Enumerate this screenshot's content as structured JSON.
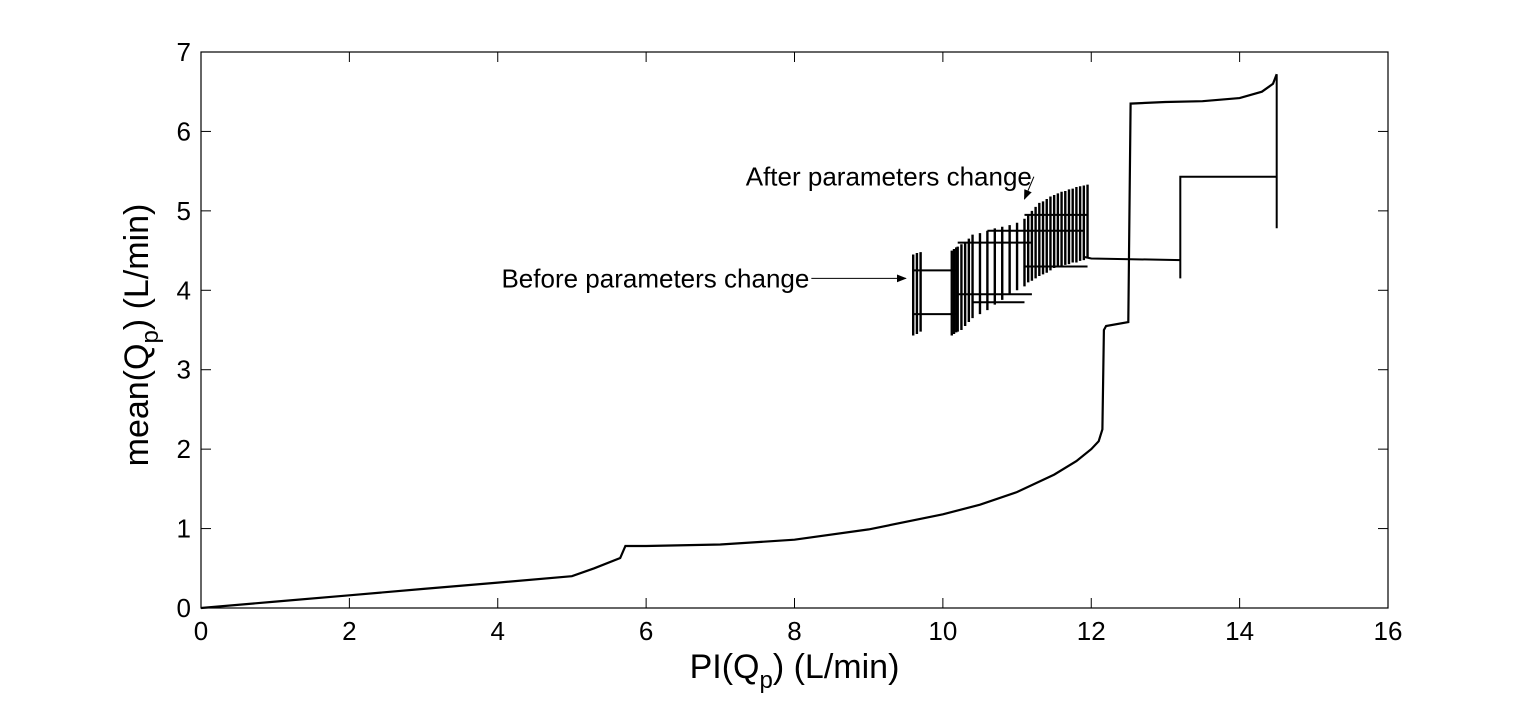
{
  "chart_data": {
    "type": "line",
    "title": "",
    "xlabel": {
      "main": "PI(Q",
      "sub": "p",
      "tail": ") (L/min)"
    },
    "ylabel": {
      "main": "mean(Q",
      "sub": "p",
      "tail": ") (L/min)"
    },
    "xlim": [
      0,
      16
    ],
    "ylim": [
      0,
      7
    ],
    "xticks": [
      "0",
      "2",
      "4",
      "6",
      "8",
      "10",
      "12",
      "14",
      "16"
    ],
    "yticks": [
      "0",
      "1",
      "2",
      "3",
      "4",
      "5",
      "6",
      "7"
    ],
    "grid": false,
    "colors": {
      "line": "#000000",
      "background": "#ffffff"
    },
    "series": [
      {
        "points": [
          [
            0,
            0
          ],
          [
            1,
            0.08
          ],
          [
            2,
            0.16
          ],
          [
            3,
            0.24
          ],
          [
            4,
            0.32
          ],
          [
            5,
            0.4
          ],
          [
            5.3,
            0.5
          ],
          [
            5.65,
            0.63
          ],
          [
            5.72,
            0.78
          ],
          [
            6,
            0.78
          ],
          [
            7,
            0.8
          ],
          [
            8,
            0.86
          ],
          [
            9,
            0.99
          ],
          [
            10,
            1.18
          ],
          [
            10.5,
            1.3
          ],
          [
            11,
            1.46
          ],
          [
            11.5,
            1.68
          ],
          [
            11.8,
            1.85
          ],
          [
            12.0,
            2.0
          ],
          [
            12.1,
            2.1
          ],
          [
            12.15,
            2.25
          ],
          [
            12.17,
            3.5
          ],
          [
            12.2,
            3.55
          ],
          [
            12.5,
            3.6
          ],
          [
            12.53,
            6.35
          ],
          [
            13,
            6.37
          ],
          [
            13.5,
            6.38
          ],
          [
            14,
            6.42
          ],
          [
            14.3,
            6.5
          ],
          [
            14.45,
            6.6
          ],
          [
            14.5,
            6.72
          ]
        ]
      },
      {
        "points": [
          [
            14.5,
            6.72
          ],
          [
            14.5,
            4.78
          ],
          [
            14.5,
            5.43
          ],
          [
            13.2,
            5.43
          ],
          [
            13.2,
            4.15
          ],
          [
            13.2,
            4.38
          ],
          [
            12,
            4.4
          ],
          [
            11.9,
            4.42
          ]
        ]
      },
      {
        "cluster_x": [
          9.6,
          9.65,
          9.7,
          10.12,
          10.15,
          10.18,
          10.2,
          10.25,
          10.3,
          10.35,
          10.4,
          10.5,
          10.6,
          10.7,
          10.8,
          10.9,
          11.0,
          11.1,
          11.15,
          11.2,
          11.25,
          11.3,
          11.35,
          11.4,
          11.45,
          11.5,
          11.55,
          11.6,
          11.65,
          11.7,
          11.75,
          11.8,
          11.85,
          11.9,
          11.95
        ],
        "cluster_lo": [
          3.43,
          3.45,
          3.48,
          3.43,
          3.45,
          3.47,
          3.48,
          3.5,
          3.55,
          3.6,
          3.65,
          3.7,
          3.75,
          3.82,
          3.88,
          3.95,
          4.0,
          4.05,
          4.1,
          4.12,
          4.15,
          4.18,
          4.2,
          4.22,
          4.25,
          4.28,
          4.3,
          4.3,
          4.32,
          4.33,
          4.35,
          4.35,
          4.37,
          4.38,
          4.4
        ],
        "cluster_hi": [
          4.45,
          4.47,
          4.48,
          4.5,
          4.52,
          4.54,
          4.55,
          4.58,
          4.6,
          4.65,
          4.7,
          4.72,
          4.75,
          4.78,
          4.8,
          4.82,
          4.85,
          4.9,
          4.95,
          5.0,
          5.05,
          5.1,
          5.12,
          5.15,
          5.18,
          5.2,
          5.22,
          5.24,
          5.25,
          5.27,
          5.28,
          5.3,
          5.31,
          5.32,
          5.33
        ],
        "bands": [
          {
            "x": [
              9.6,
              10.2
            ],
            "y": 4.25
          },
          {
            "x": [
              9.6,
              10.2
            ],
            "y": 3.7
          },
          {
            "x": [
              10.2,
              11.2
            ],
            "y": 3.95
          },
          {
            "x": [
              10.2,
              11.2
            ],
            "y": 4.6
          },
          {
            "x": [
              11.1,
              11.95
            ],
            "y": 4.95
          },
          {
            "x": [
              11.1,
              11.95
            ],
            "y": 4.3
          },
          {
            "x": [
              10.4,
              11.1
            ],
            "y": 3.85
          },
          {
            "x": [
              10.6,
              11.9
            ],
            "y": 4.75
          }
        ]
      }
    ],
    "annotations": [
      {
        "text": "After parameters change",
        "xy": [
          11.1,
          5.15
        ],
        "text_xy": [
          11.2,
          5.43
        ]
      },
      {
        "text": "Before parameters change",
        "xy": [
          9.5,
          4.15
        ],
        "text_xy": [
          8.2,
          4.15
        ]
      }
    ]
  }
}
